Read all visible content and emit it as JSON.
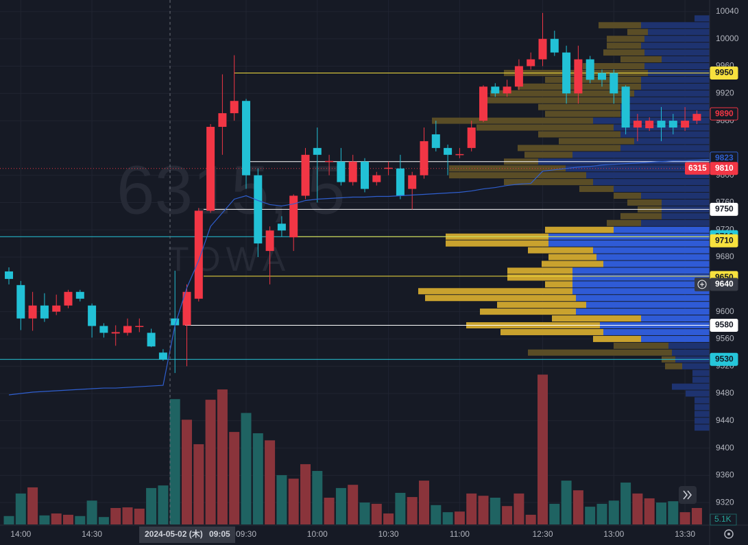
{
  "chart_data": {
    "type": "candlestick",
    "watermark": {
      "symbol": "6315, 5",
      "name": "TOWA"
    },
    "categories": [
      null,
      "14:00",
      null,
      null,
      null,
      null,
      null,
      "14:30",
      null,
      null,
      null,
      null,
      null,
      null,
      null,
      null,
      null,
      null,
      null,
      null,
      "09:30",
      null,
      null,
      null,
      null,
      null,
      "10:00",
      null,
      null,
      null,
      null,
      null,
      "10:30",
      null,
      null,
      null,
      null,
      null,
      "11:00",
      null,
      null,
      null,
      null,
      null,
      null,
      "12:30",
      null,
      null,
      null,
      null,
      null,
      "13:00",
      null,
      null,
      null,
      null,
      null,
      "13:30",
      null
    ],
    "open": [
      9659,
      9639,
      9590,
      9609,
      9600,
      9609,
      9629,
      9609,
      9579,
      9568,
      9569,
      9579,
      9569,
      9540,
      9590,
      9580,
      9619,
      9748,
      9871,
      9891,
      9909,
      9800,
      9689,
      9729,
      9709,
      9770,
      9840,
      9820,
      9820,
      9790,
      9820,
      9790,
      9810,
      9810,
      9780,
      9800,
      9860,
      9840,
      9830,
      9840,
      9880,
      9930,
      9920,
      9930,
      9960,
      9970,
      10000,
      9980,
      9920,
      9970,
      9950,
      9950,
      9930,
      9870,
      9869,
      9880,
      9880,
      9870,
      9880
    ],
    "high": [
      9665,
      9645,
      9629,
      9627,
      9625,
      9632,
      9632,
      9612,
      9583,
      9580,
      9590,
      9590,
      9575,
      9545,
      9660,
      9640,
      9752,
      9875,
      9948,
      9976,
      9912,
      9810,
      9725,
      9740,
      9772,
      9840,
      9870,
      9830,
      9840,
      9830,
      9825,
      9805,
      9820,
      9830,
      9805,
      9870,
      9880,
      9845,
      9840,
      9880,
      9932,
      9935,
      9940,
      9970,
      9980,
      10038,
      10012,
      9990,
      9990,
      9975,
      9955,
      9955,
      9932,
      9890,
      9885,
      9900,
      9890,
      9900,
      9895
    ],
    "low": [
      9640,
      9573,
      9572,
      9585,
      9595,
      9605,
      9615,
      9562,
      9562,
      9550,
      9565,
      9570,
      9548,
      9528,
      9510,
      9520,
      9615,
      9745,
      9830,
      9880,
      9780,
      9680,
      9640,
      9710,
      9689,
      9765,
      9760,
      9800,
      9785,
      9785,
      9775,
      9785,
      9800,
      9765,
      9750,
      9795,
      9835,
      9800,
      9825,
      9835,
      9878,
      9915,
      9915,
      9925,
      9955,
      9960,
      9975,
      9905,
      9905,
      9935,
      9930,
      9905,
      9860,
      9850,
      9865,
      9850,
      9860,
      9865,
      9875
    ],
    "close": [
      9648,
      9590,
      9609,
      9590,
      9609,
      9629,
      9619,
      9579,
      9569,
      9570,
      9579,
      9579,
      9549,
      9530,
      9580,
      9629,
      9748,
      9871,
      9891,
      9909,
      9800,
      9700,
      9719,
      9719,
      9770,
      9830,
      9830,
      9821,
      9790,
      9820,
      9780,
      9800,
      9811,
      9770,
      9800,
      9850,
      9840,
      9830,
      9831,
      9870,
      9930,
      9920,
      9930,
      9960,
      9970,
      10000,
      9980,
      9920,
      9970,
      9940,
      9940,
      9920,
      9870,
      9880,
      9880,
      9870,
      9870,
      9880,
      9890
    ],
    "up_color": "#f23645",
    "down_color": "#22c1d6",
    "volume": {
      "values": [
        2600,
        9600,
        11500,
        2800,
        3400,
        3000,
        2600,
        7400,
        2300,
        5100,
        5300,
        4900,
        11300,
        12100,
        38900,
        32500,
        24900,
        38700,
        41900,
        28700,
        34600,
        28300,
        26100,
        15300,
        14200,
        18700,
        16600,
        8300,
        11300,
        12300,
        6800,
        6400,
        3400,
        9800,
        8500,
        13600,
        6000,
        3800,
        4000,
        9600,
        8900,
        8300,
        5700,
        9600,
        3000,
        46500,
        6400,
        13600,
        10600,
        5500,
        6400,
        7400,
        13000,
        9600,
        8100,
        6800,
        7200,
        3800,
        5100
      ],
      "last_label": "5.1K",
      "vlim": [
        0,
        50000
      ],
      "up_color": "#8a343b",
      "down_color": "#1f6362"
    },
    "vwap": {
      "color": "#2f5fd0",
      "values": [
        9478,
        9480,
        9482,
        9483,
        9484,
        9485,
        9486,
        9487,
        9488,
        9488,
        9489,
        9490,
        9491,
        9492,
        9580,
        9635,
        9675,
        9725,
        9745,
        9765,
        9770,
        9763,
        9757,
        9755,
        9758,
        9763,
        9765,
        9766,
        9767,
        9768,
        9768,
        9769,
        9769,
        9770,
        9771,
        9772,
        9773,
        9774,
        9775,
        9777,
        9780,
        9782,
        9785,
        9787,
        9788,
        9806,
        9808,
        9810,
        9812,
        9813,
        9815,
        9816,
        9817,
        9818,
        9819,
        9820,
        9821,
        9821,
        9822
      ],
      "last": 9823
    },
    "last_price": 9890,
    "compare": {
      "symbol": "6315",
      "price": 9810,
      "color": "#f23645"
    },
    "levels": [
      {
        "value": 9950,
        "color": "#f7e13e"
      },
      {
        "value": 9820,
        "color": "#ffffff"
      },
      {
        "value": 9750,
        "color": "#ffffff"
      },
      {
        "value": 9710,
        "color": "#26c6da"
      },
      {
        "value": 9710,
        "color": "#f7e13e"
      },
      {
        "value": 9650,
        "color": "#f7e13e"
      },
      {
        "value": 9580,
        "color": "#ffffff"
      },
      {
        "value": 9530,
        "color": "#26c6da"
      }
    ],
    "volume_profile": {
      "prices": [
        10030,
        10020,
        10010,
        10000,
        9990,
        9980,
        9970,
        9960,
        9950,
        9940,
        9930,
        9920,
        9910,
        9900,
        9890,
        9880,
        9870,
        9860,
        9850,
        9840,
        9830,
        9820,
        9810,
        9800,
        9790,
        9780,
        9770,
        9760,
        9750,
        9740,
        9730,
        9720,
        9710,
        9700,
        9690,
        9680,
        9670,
        9660,
        9650,
        9640,
        9630,
        9620,
        9610,
        9600,
        9590,
        9580,
        9570,
        9560,
        9550,
        9540,
        9530,
        9520,
        9510,
        9500,
        9490,
        9480,
        9470,
        9460,
        9450,
        9440,
        9430
      ],
      "up": [
        22,
        100,
        90,
        95,
        100,
        95,
        70,
        95,
        90,
        100,
        100,
        110,
        125,
        130,
        130,
        170,
        140,
        130,
        110,
        130,
        200,
        250,
        210,
        180,
        170,
        140,
        100,
        70,
        70,
        70,
        100,
        140,
        235,
        235,
        170,
        165,
        155,
        200,
        200,
        200,
        200,
        195,
        180,
        195,
        100,
        160,
        155,
        100,
        60,
        55,
        50,
        40,
        25,
        25,
        55,
        35,
        22,
        22,
        22,
        22,
        22
      ],
      "down": [
        0,
        62,
        30,
        55,
        50,
        60,
        60,
        90,
        210,
        140,
        180,
        210,
        200,
        120,
        110,
        235,
        200,
        120,
        110,
        150,
        70,
        50,
        170,
        200,
        130,
        50,
        40,
        50,
        35,
        60,
        50,
        100,
        150,
        150,
        95,
        70,
        90,
        95,
        95,
        40,
        225,
        220,
        130,
        140,
        130,
        195,
        150,
        70,
        80,
        210,
        20,
        25,
        0,
        0,
        0,
        0,
        0,
        0,
        0,
        0,
        0
      ],
      "value_area": [
        9560,
        9720
      ]
    },
    "crosshair": {
      "date": "2024-05-02 (木)",
      "time": "09:05",
      "price": 9640
    },
    "ylim": [
      9288,
      10057
    ],
    "yticks": [
      10040,
      10000,
      9960,
      9920,
      9880,
      9800,
      9760,
      9720,
      9680,
      9600,
      9560,
      9520,
      9480,
      9440,
      9400,
      9360,
      9320
    ],
    "grid": true
  }
}
